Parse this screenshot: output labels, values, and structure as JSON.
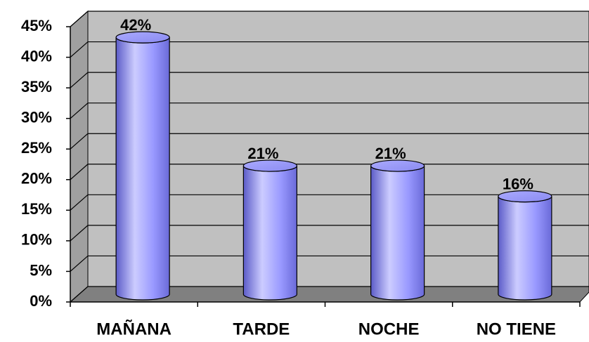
{
  "chart_data": {
    "type": "bar",
    "categories": [
      "MAÑANA",
      "TARDE",
      "NOCHE",
      "NO TIENE"
    ],
    "values": [
      42,
      21,
      21,
      16
    ],
    "value_labels": [
      "42%",
      "21%",
      "21%",
      "16%"
    ],
    "color": "#9999ff",
    "ylim": [
      0,
      45
    ],
    "yticks": [
      {
        "value": 0,
        "label": "0%"
      },
      {
        "value": 5,
        "label": "5%"
      },
      {
        "value": 10,
        "label": "10%"
      },
      {
        "value": 15,
        "label": "15%"
      },
      {
        "value": 20,
        "label": "20%"
      },
      {
        "value": 25,
        "label": "25%"
      },
      {
        "value": 30,
        "label": "30%"
      },
      {
        "value": 35,
        "label": "35%"
      },
      {
        "value": 40,
        "label": "40%"
      },
      {
        "value": 45,
        "label": "45%"
      }
    ],
    "grid": true
  }
}
